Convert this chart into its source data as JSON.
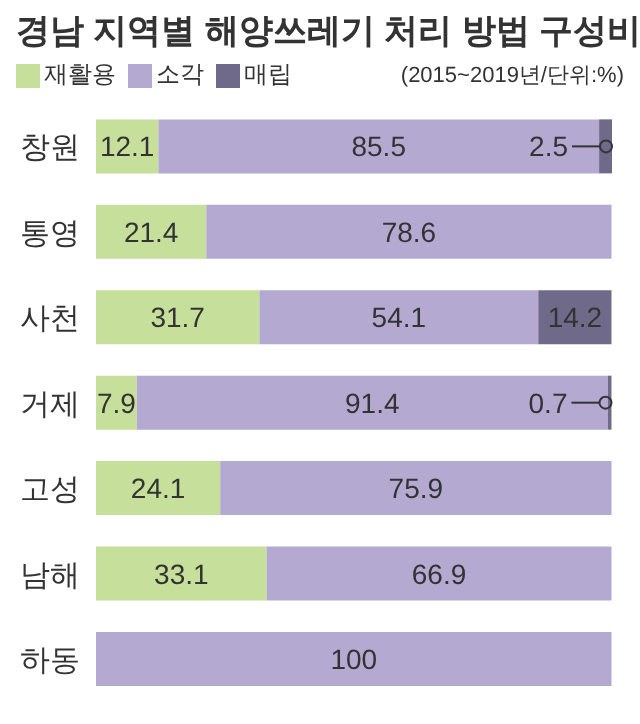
{
  "chart_data": {
    "type": "bar",
    "orientation": "horizontal",
    "stacked": true,
    "title": "경남 지역별  해양쓰레기 처리 방법 구성비",
    "subtitle": "(2015~2019년/단위:%)",
    "legend": "top left",
    "categories": [
      "창원",
      "통영",
      "사천",
      "거제",
      "고성",
      "남해",
      "하동"
    ],
    "series": [
      {
        "name": "재활용",
        "color": "#c6df9a",
        "values": [
          12.1,
          21.4,
          31.7,
          7.9,
          24.1,
          33.1,
          0
        ],
        "value_labels": [
          "12.1",
          "21.4",
          "31.7",
          "7.9",
          "24.1",
          "33.1",
          null
        ]
      },
      {
        "name": "소각",
        "color": "#b3a9d1",
        "values": [
          85.5,
          78.6,
          54.1,
          91.4,
          75.9,
          66.9,
          100
        ],
        "value_labels": [
          "85.5",
          "78.6",
          "54.1",
          "91.4",
          "75.9",
          "66.9",
          "100"
        ]
      },
      {
        "name": "매립",
        "color": "#6f6a8a",
        "values": [
          2.5,
          0,
          14.2,
          0.7,
          0,
          0,
          0
        ],
        "value_labels": [
          "2.5",
          null,
          "14.2",
          "0.7",
          null,
          null,
          null
        ]
      }
    ]
  }
}
